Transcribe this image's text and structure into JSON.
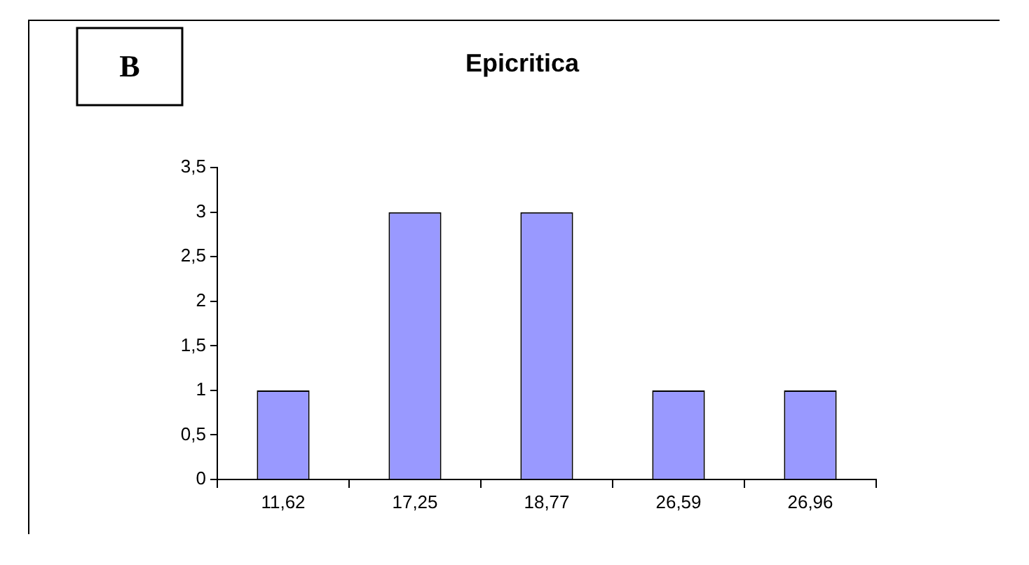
{
  "chart_data": {
    "type": "bar",
    "title": "Epicritica",
    "annotations": [
      "B"
    ],
    "categories": [
      "11,62",
      "17,25",
      "18,77",
      "26,59",
      "26,96"
    ],
    "values": [
      1,
      3,
      3,
      1,
      1
    ],
    "color": "#9999ff",
    "ylim": [
      0,
      3.5
    ],
    "yticks": [
      0,
      {
        "value": 0.5,
        "label": "0,5"
      },
      1,
      {
        "value": 1.5,
        "label": "1,5"
      },
      2,
      {
        "value": 2.5,
        "label": "2,5"
      },
      3,
      {
        "value": 3.5,
        "label": "3,5"
      }
    ],
    "grid": false,
    "legend": false
  }
}
